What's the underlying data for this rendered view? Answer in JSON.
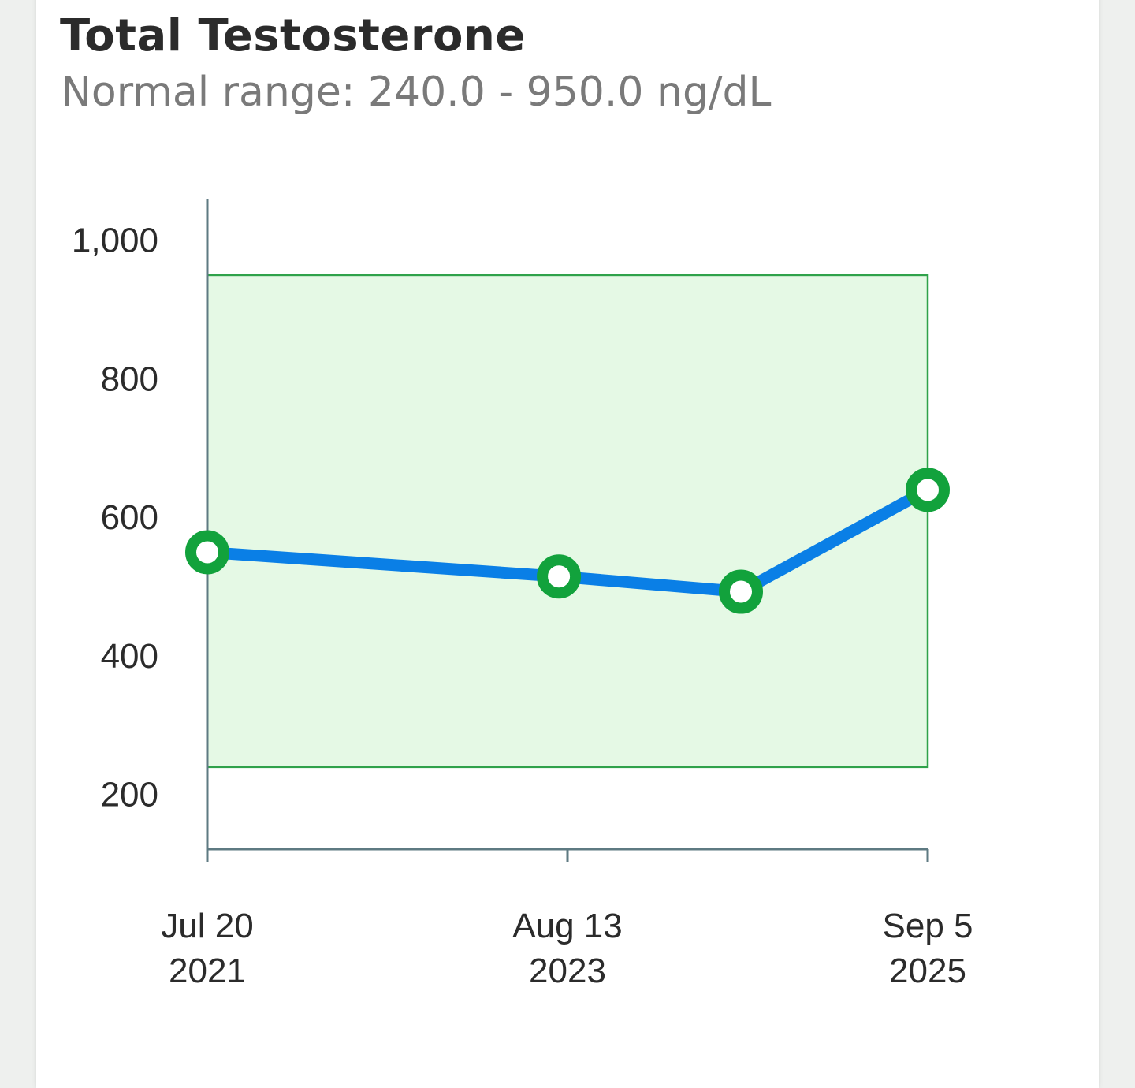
{
  "header": {
    "title": "Total Testosterone",
    "subtitle": "Normal range: 240.0 - 950.0 ng/dL"
  },
  "colors": {
    "line": "#0a7fe6",
    "marker": "#12a23c",
    "range_fill": "#e5f9e5",
    "range_stroke": "#2fa24a",
    "axis": "#5e7a82"
  },
  "chart_data": {
    "type": "line",
    "title": "Total Testosterone",
    "subtitle": "Normal range: 240.0 - 950.0 ng/dL",
    "normal_range": [
      240.0,
      950.0
    ],
    "unit": "ng/dL",
    "ylim": [
      120,
      1060
    ],
    "yticks": [
      200,
      400,
      600,
      800,
      1000
    ],
    "ytick_labels": [
      "200",
      "400",
      "600",
      "800",
      "1,000"
    ],
    "xlim": [
      "2021-07-20",
      "2025-09-05"
    ],
    "xticks": [
      {
        "date": "2021-07-20",
        "line1": "Jul 20",
        "line2": "2021"
      },
      {
        "date": "2023-08-13",
        "line1": "Aug 13",
        "line2": "2023"
      },
      {
        "date": "2025-09-05",
        "line1": "Sep 5",
        "line2": "2025"
      }
    ],
    "series": [
      {
        "points": [
          {
            "x": "2021-07-20",
            "y": 550
          },
          {
            "x": "2023-07-26",
            "y": 515
          },
          {
            "x": "2024-08-10",
            "y": 493
          },
          {
            "x": "2025-09-05",
            "y": 640
          }
        ]
      }
    ],
    "grid": false,
    "legend": "none"
  }
}
